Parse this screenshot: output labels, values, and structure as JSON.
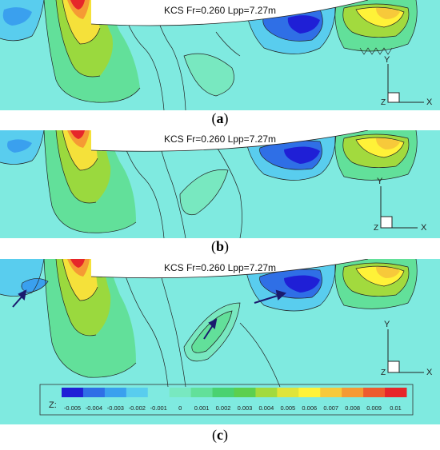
{
  "panels": [
    {
      "id": "a",
      "title": "KCS Fr=0.260 Lpp=7.27m",
      "caption_letter": "a"
    },
    {
      "id": "b",
      "title": "KCS Fr=0.260 Lpp=7.27m",
      "caption_letter": "b"
    },
    {
      "id": "c",
      "title": "KCS Fr=0.260 Lpp=7.27m",
      "caption_letter": "c"
    }
  ],
  "axis_labels": {
    "x": "X",
    "y": "Y",
    "z": "Z"
  },
  "colorbar": {
    "label": "Z:",
    "ticks": [
      "-0.005",
      "-0.004",
      "-0.003",
      "-0.002",
      "-0.001",
      "0",
      "0.001",
      "0.002",
      "0.003",
      "0.004",
      "0.005",
      "0.006",
      "0.007",
      "0.008",
      "0.009",
      "0.01"
    ],
    "colors": [
      "#1f1fd6",
      "#2f6fe6",
      "#3aa0ee",
      "#59cdee",
      "#7feae0",
      "#78e8c0",
      "#62e09a",
      "#4ad271",
      "#5ccf4f",
      "#a2da3e",
      "#e0e43a",
      "#fff238",
      "#f7c93a",
      "#f59a34",
      "#ee5b2e",
      "#e6262a"
    ]
  },
  "chart_data": {
    "type": "heatmap",
    "title": "KCS Fr=0.260 Lpp=7.27m",
    "variable": "Z",
    "scale_min": -0.005,
    "scale_max": 0.01,
    "panels": [
      "a",
      "b",
      "c"
    ],
    "annotations": "arrows marking trough regions in panel (c)"
  }
}
